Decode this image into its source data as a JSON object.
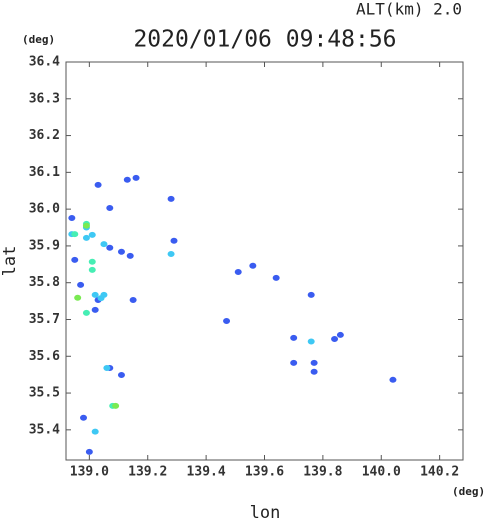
{
  "chart_data": {
    "type": "scatter",
    "alt_label": "ALT(km) 2.0",
    "title": "2020/01/06 09:48:56",
    "y_unit": "(deg)",
    "x_unit": "(deg)",
    "ylabel": "lat",
    "xlabel": "lon",
    "xlim": [
      138.92,
      140.28
    ],
    "ylim": [
      35.318,
      36.4
    ],
    "xticks": [
      {
        "value": 139.0,
        "label": "139.0"
      },
      139.2,
      139.4,
      139.6,
      139.8,
      {
        "value": 140.0,
        "label": "140.0"
      },
      140.2
    ],
    "yticks": [
      35.4,
      35.5,
      35.6,
      35.7,
      35.8,
      35.9,
      {
        "value": 36.0,
        "label": "36.0"
      },
      36.1,
      36.2,
      36.3,
      36.4
    ],
    "series": [
      {
        "color": "#3a5cf0",
        "x": [
          138.94,
          139.03,
          139.07,
          139.13,
          139.16,
          139.28,
          139.29,
          139.07,
          139.11,
          138.95,
          138.97,
          139.03,
          139.02,
          139.15,
          139.56,
          139.51,
          139.64,
          139.47,
          139.76,
          139.7,
          139.7,
          139.77,
          139.77,
          139.84,
          139.86,
          140.04,
          139.07,
          139.11,
          139.0,
          138.98,
          139.14
        ],
        "values": [
          35.976,
          36.066,
          36.003,
          36.08,
          36.085,
          36.028,
          35.914,
          35.895,
          35.884,
          35.862,
          35.794,
          35.753,
          35.726,
          35.753,
          35.846,
          35.829,
          35.813,
          35.696,
          35.767,
          35.65,
          35.582,
          35.582,
          35.558,
          35.647,
          35.658,
          35.536,
          35.568,
          35.549,
          35.34,
          35.433,
          35.873
        ]
      },
      {
        "color": "#3ec8f4",
        "x": [
          138.99,
          139.01,
          139.05,
          138.99,
          139.02,
          139.04,
          139.06,
          139.02,
          138.94,
          139.76,
          139.28,
          139.05
        ],
        "values": [
          35.922,
          35.93,
          35.905,
          35.95,
          35.767,
          35.758,
          35.568,
          35.395,
          35.932,
          35.64,
          35.878,
          35.767
        ]
      },
      {
        "color": "#46eeb4",
        "x": [
          139.01,
          139.01,
          138.95,
          138.99,
          139.08,
          138.99
        ],
        "values": [
          35.857,
          35.835,
          35.932,
          35.96,
          35.465,
          35.718
        ]
      },
      {
        "color": "#7aea52",
        "x": [
          138.96,
          139.09,
          138.99
        ],
        "values": [
          35.759,
          35.465,
          35.955
        ]
      }
    ]
  }
}
